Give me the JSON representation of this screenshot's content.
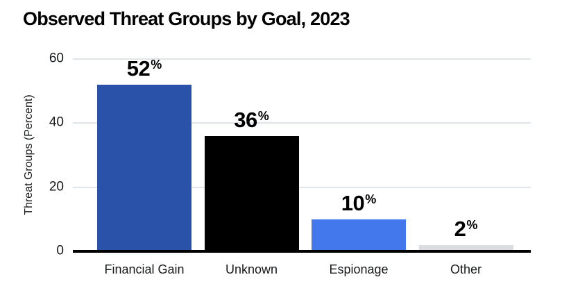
{
  "chart_data": {
    "type": "bar",
    "title": "Observed Threat Groups by Goal, 2023",
    "categories": [
      "Financial Gain",
      "Unknown",
      "Espionage",
      "Other"
    ],
    "values": [
      52,
      36,
      10,
      2
    ],
    "value_labels": [
      "52",
      "36",
      "10",
      "2"
    ],
    "value_suffix": "%",
    "ylabel": "Threat Groups (Percent)",
    "xlabel": "",
    "yticks": [
      0,
      20,
      40,
      60
    ],
    "ylim": [
      0,
      60
    ],
    "bar_colors": [
      "#2a52a8",
      "#000000",
      "#4377ec",
      "#d9dce0"
    ],
    "grid": true,
    "legend": false
  },
  "colors": {
    "background": "#ffffff",
    "title_text": "#000000",
    "axis_text": "#17181a",
    "value_label_text": "#000000",
    "gridline": "#e0e3e8",
    "axis_line": "#000000"
  }
}
